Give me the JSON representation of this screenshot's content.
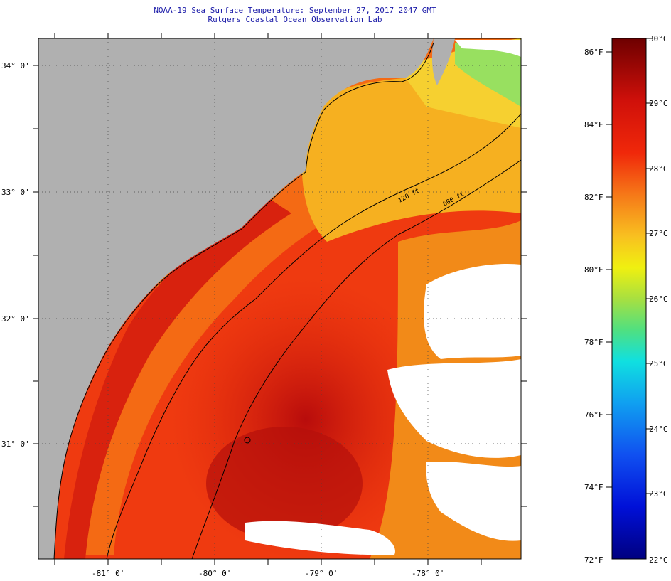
{
  "title": {
    "line1": "NOAA-19 Sea Surface Temperature:  September 27, 2017 2047 GMT",
    "line2": "Rutgers Coastal Ocean Observation Lab"
  },
  "map": {
    "lat_labels": [
      "34° 0'",
      "33° 0'",
      "32° 0'",
      "31° 0'"
    ],
    "lon_labels": [
      "-81° 0'",
      "-80° 0'",
      "-79° 0'",
      "-78° 0'"
    ],
    "isobaths": [
      "120 ft",
      "600 ft"
    ],
    "colors": {
      "land": "#b0b0b0",
      "cloud": "#ffffff",
      "ocean_warm": "#e8300f",
      "ocean_hot": "#c8140c",
      "ocean_mid": "#f28a18",
      "nearshore_cool": "#f6c62a"
    }
  },
  "colorbar": {
    "f_labels": [
      "86°F",
      "84°F",
      "82°F",
      "80°F",
      "78°F",
      "76°F",
      "74°F",
      "72°F"
    ],
    "c_labels": [
      "30°C",
      "29°C",
      "28°C",
      "27°C",
      "26°C",
      "25°C",
      "24°C",
      "23°C",
      "22°C"
    ],
    "range_c": [
      22,
      30
    ],
    "range_f": [
      72,
      86
    ]
  }
}
